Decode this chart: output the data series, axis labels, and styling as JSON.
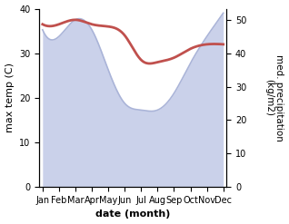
{
  "months": [
    "Jan",
    "Feb",
    "Mar",
    "Apr",
    "May",
    "Jun",
    "Jul",
    "Aug",
    "Sep",
    "Oct",
    "Nov",
    "Dec"
  ],
  "month_indices": [
    0,
    1,
    2,
    3,
    4,
    5,
    6,
    7,
    8,
    9,
    10,
    11
  ],
  "max_temp": [
    36.5,
    36.5,
    37.5,
    36.5,
    36.0,
    34.0,
    28.5,
    28.0,
    29.0,
    31.0,
    32.0,
    32.0
  ],
  "precipitation": [
    47,
    45,
    50,
    47,
    35,
    25,
    23,
    23,
    28,
    37,
    45,
    52
  ],
  "temp_color": "#c0504d",
  "precip_fill_color": "#c5cce8",
  "precip_line_color": "#aab4d8",
  "precip_alpha": 0.9,
  "temp_ylim": [
    0,
    40
  ],
  "precip_ylim": [
    0,
    53.3
  ],
  "temp_yticks": [
    0,
    10,
    20,
    30,
    40
  ],
  "precip_yticks": [
    0,
    10,
    20,
    30,
    40,
    50
  ],
  "xlabel": "date (month)",
  "ylabel_left": "max temp (C)",
  "ylabel_right": "med. precipitation\n(kg/m2)",
  "temp_linewidth": 2.0,
  "precip_linewidth": 1.2,
  "xlabel_fontsize": 8,
  "ylabel_fontsize": 8,
  "tick_fontsize": 7,
  "xtick_fontsize": 6.5
}
